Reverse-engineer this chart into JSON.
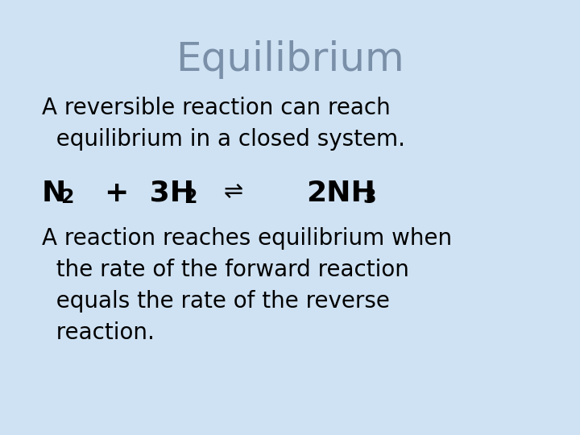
{
  "background_color": "#cfe2f3",
  "title": "Equilibrium",
  "title_color": "#7a8fa8",
  "title_fontsize": 36,
  "title_font": "Comic Sans MS",
  "body_font": "Comic Sans MS",
  "body_color": "#000000",
  "body_fontsize": 20,
  "equation_fontsize": 26,
  "sub_fontsize": 17,
  "text_block1": "A reversible reaction can reach\n  equilibrium in a closed system.",
  "text_block2": "A reaction reaches equilibrium when\n  the rate of the forward reaction\n  equals the rate of the reverse\n  reaction.",
  "eq_arrow": "⇌"
}
